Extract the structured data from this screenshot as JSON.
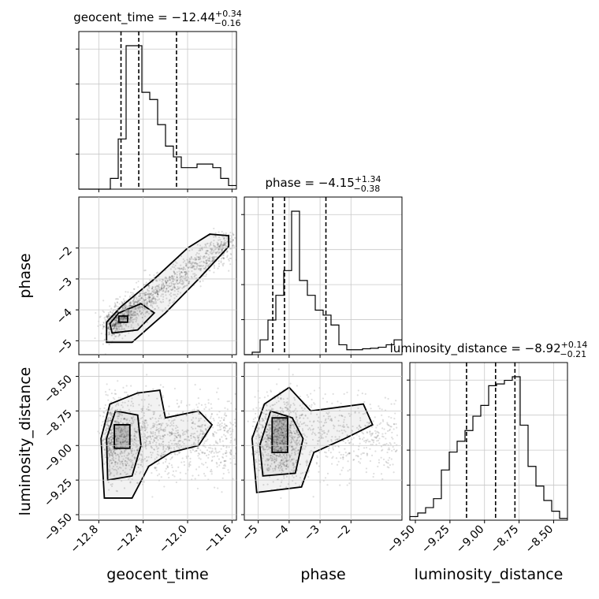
{
  "chart_data": {
    "type": "corner",
    "parameters": [
      "geocent_time",
      "phase",
      "luminosity_distance"
    ],
    "axis_labels": [
      "geocent_time",
      "phase",
      "luminosity_distance"
    ],
    "ranges": {
      "geocent_time": [
        -12.98,
        -11.56
      ],
      "phase": [
        -5.45,
        -0.35
      ],
      "luminosity_distance": [
        -9.54,
        -8.4
      ]
    },
    "ticks": {
      "geocent_time": {
        "values": [
          -12.8,
          -12.4,
          -12.0,
          -11.6
        ],
        "labels": [
          "−12.8",
          "−12.4",
          "−12.0",
          "−11.6"
        ]
      },
      "phase": {
        "values": [
          -5,
          -4,
          -3,
          -2
        ],
        "labels": [
          "−5",
          "−4",
          "−3",
          "−2"
        ]
      },
      "luminosity_distance": {
        "values": [
          -9.5,
          -9.25,
          -9.0,
          -8.75,
          -8.5
        ],
        "labels": [
          "−9.50",
          "−9.25",
          "−9.00",
          "−8.75",
          "−8.50"
        ]
      }
    },
    "diagonal_titles": [
      {
        "param": "geocent_time",
        "prefix": "geocent_time = ",
        "median": "−12.44",
        "plus": "+0.34",
        "minus": "−0.16"
      },
      {
        "param": "phase",
        "prefix": "phase = ",
        "median": "−4.15",
        "plus": "+1.34",
        "minus": "−0.38"
      },
      {
        "param": "luminosity_distance",
        "prefix": "luminosity_distance = ",
        "median": "−8.92",
        "plus": "+0.14",
        "minus": "−0.21"
      }
    ],
    "quantiles": {
      "geocent_time": [
        -12.6,
        -12.44,
        -12.1
      ],
      "phase": [
        -4.53,
        -4.15,
        -2.81
      ],
      "luminosity_distance": [
        -9.13,
        -8.92,
        -8.78
      ]
    },
    "histograms": {
      "geocent_time": {
        "range": [
          -12.98,
          -11.56
        ],
        "counts": [
          0,
          0,
          0,
          0,
          3,
          14,
          40,
          40,
          27,
          25,
          18,
          12,
          9,
          6,
          6,
          7,
          7,
          6,
          3,
          1
        ]
      },
      "phase": {
        "range": [
          -5.45,
          -0.35
        ],
        "counts": [
          0,
          0.5,
          3,
          7,
          12,
          17,
          29,
          15,
          12,
          9,
          8,
          6,
          2,
          1,
          1,
          1.2,
          1.3,
          1.5,
          2,
          3
        ]
      },
      "luminosity_distance": {
        "range": [
          -9.54,
          -8.4
        ],
        "counts": [
          0.2,
          0.4,
          0.7,
          1.2,
          2.8,
          3.8,
          4.4,
          5.0,
          5.8,
          6.4,
          7.5,
          7.6,
          7.8,
          8.0,
          5.3,
          3.0,
          1.9,
          1.1,
          0.5,
          0.1
        ]
      }
    },
    "grid": true
  }
}
